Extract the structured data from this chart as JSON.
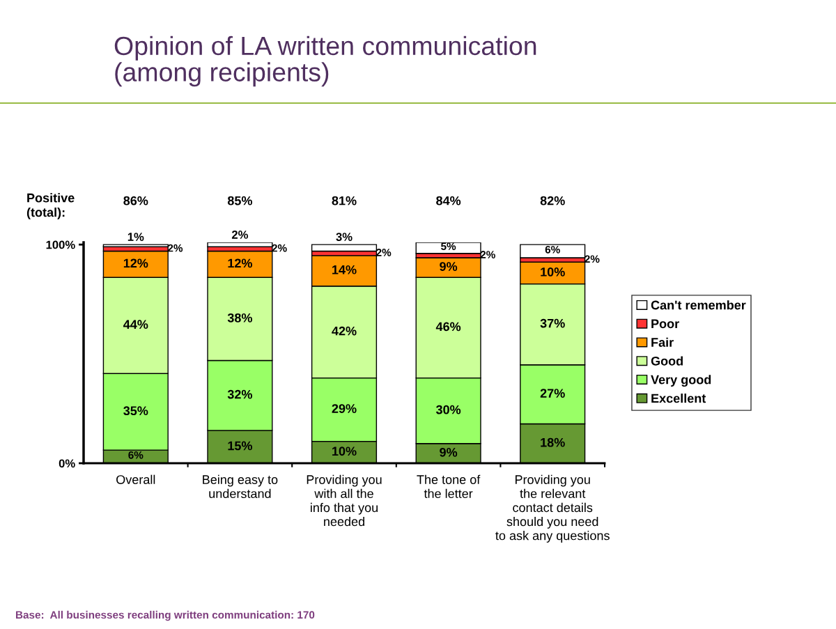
{
  "chart_data": {
    "type": "bar",
    "stacked": true,
    "title": "Opinion of LA written communication\n(among recipients)",
    "categories": [
      "Overall",
      "Being easy to\nunderstand",
      "Providing you\nwith all the\ninfo that you\nneeded",
      "The tone of\nthe letter",
      "Providing you\nthe relevant\ncontact details\nshould you need\nto ask any questions"
    ],
    "series": [
      {
        "name": "Excellent",
        "color": "#669933",
        "values": [
          6,
          15,
          10,
          9,
          18
        ],
        "value_labels": [
          "6%",
          "15%",
          "10%",
          "9%",
          "18%"
        ]
      },
      {
        "name": "Very good",
        "color": "#99ff66",
        "values": [
          35,
          32,
          29,
          30,
          27
        ],
        "value_labels": [
          "35%",
          "32%",
          "29%",
          "30%",
          "27%"
        ]
      },
      {
        "name": "Good",
        "color": "#ccff99",
        "values": [
          44,
          38,
          42,
          46,
          37
        ],
        "value_labels": [
          "44%",
          "38%",
          "42%",
          "46%",
          "37%"
        ]
      },
      {
        "name": "Fair",
        "color": "#ff9900",
        "values": [
          12,
          12,
          14,
          9,
          10
        ],
        "value_labels": [
          "12%",
          "12%",
          "14%",
          "9%",
          "10%"
        ]
      },
      {
        "name": "Poor",
        "color": "#ff3333",
        "values": [
          2,
          2,
          2,
          2,
          2
        ],
        "value_labels": [
          "2%",
          "2%",
          "2%",
          "2%",
          "2%"
        ]
      },
      {
        "name": "Can't remember",
        "color": "#ffffff",
        "values": [
          1,
          2,
          3,
          5,
          6
        ],
        "value_labels": [
          "1%",
          "2%",
          "3%",
          "5%",
          "6%"
        ]
      }
    ],
    "ylim": [
      0,
      101
    ],
    "yticks": [
      {
        "value": 0,
        "label": "0%"
      },
      {
        "value": 100,
        "label": "100%"
      }
    ],
    "grid": false,
    "legend": "right",
    "annotations": [
      "Positive\n(total):",
      "86%",
      "85%",
      "81%",
      "84%",
      "82%",
      "Base:  All businesses recalling written communication: 170"
    ]
  }
}
